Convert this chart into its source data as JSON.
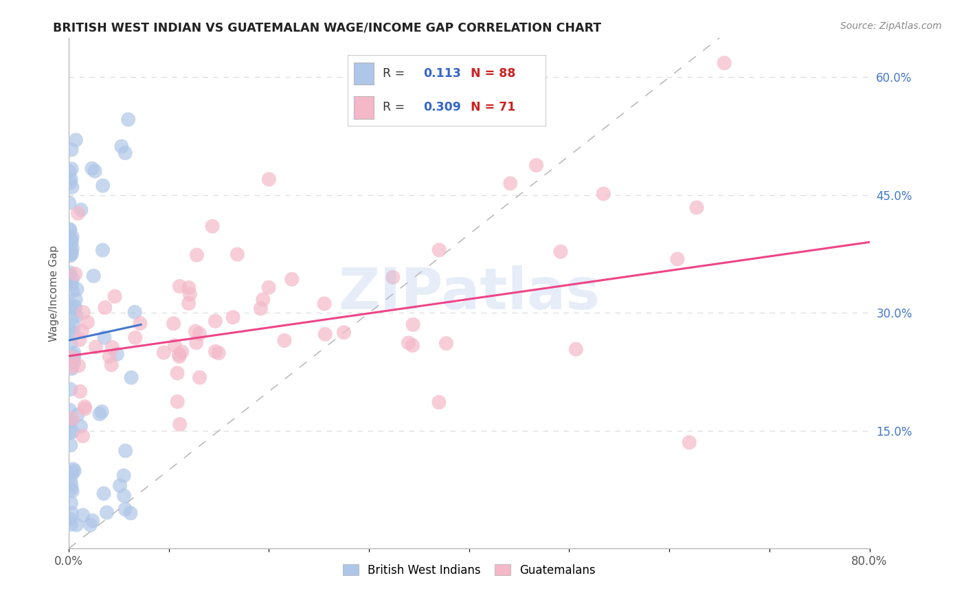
{
  "title": "BRITISH WEST INDIAN VS GUATEMALAN WAGE/INCOME GAP CORRELATION CHART",
  "source": "Source: ZipAtlas.com",
  "ylabel": "Wage/Income Gap",
  "xlim": [
    0.0,
    0.8
  ],
  "ylim": [
    0.0,
    0.65
  ],
  "grid_color": "#dddddd",
  "background_color": "#ffffff",
  "bwi_color": "#aec6e8",
  "guat_color": "#f4b8c8",
  "bwi_line_color": "#4477cc",
  "guat_line_color": "#ee4488",
  "diag_color": "#bbbbbb",
  "R_bwi": 0.113,
  "N_bwi": 88,
  "R_guat": 0.309,
  "N_guat": 71,
  "watermark": "ZIPatlas",
  "legend_label_bwi": "British West Indians",
  "legend_label_guat": "Guatemalans",
  "right_yticks": [
    0.15,
    0.3,
    0.45,
    0.6
  ],
  "right_yticklabels": [
    "15.0%",
    "30.0%",
    "45.0%",
    "60.0%"
  ],
  "xtick_positions": [
    0.0,
    0.1,
    0.2,
    0.3,
    0.4,
    0.5,
    0.6,
    0.7,
    0.8
  ],
  "xtick_labels": [
    "0.0%",
    "",
    "",
    "",
    "",
    "",
    "",
    "",
    "80.0%"
  ]
}
